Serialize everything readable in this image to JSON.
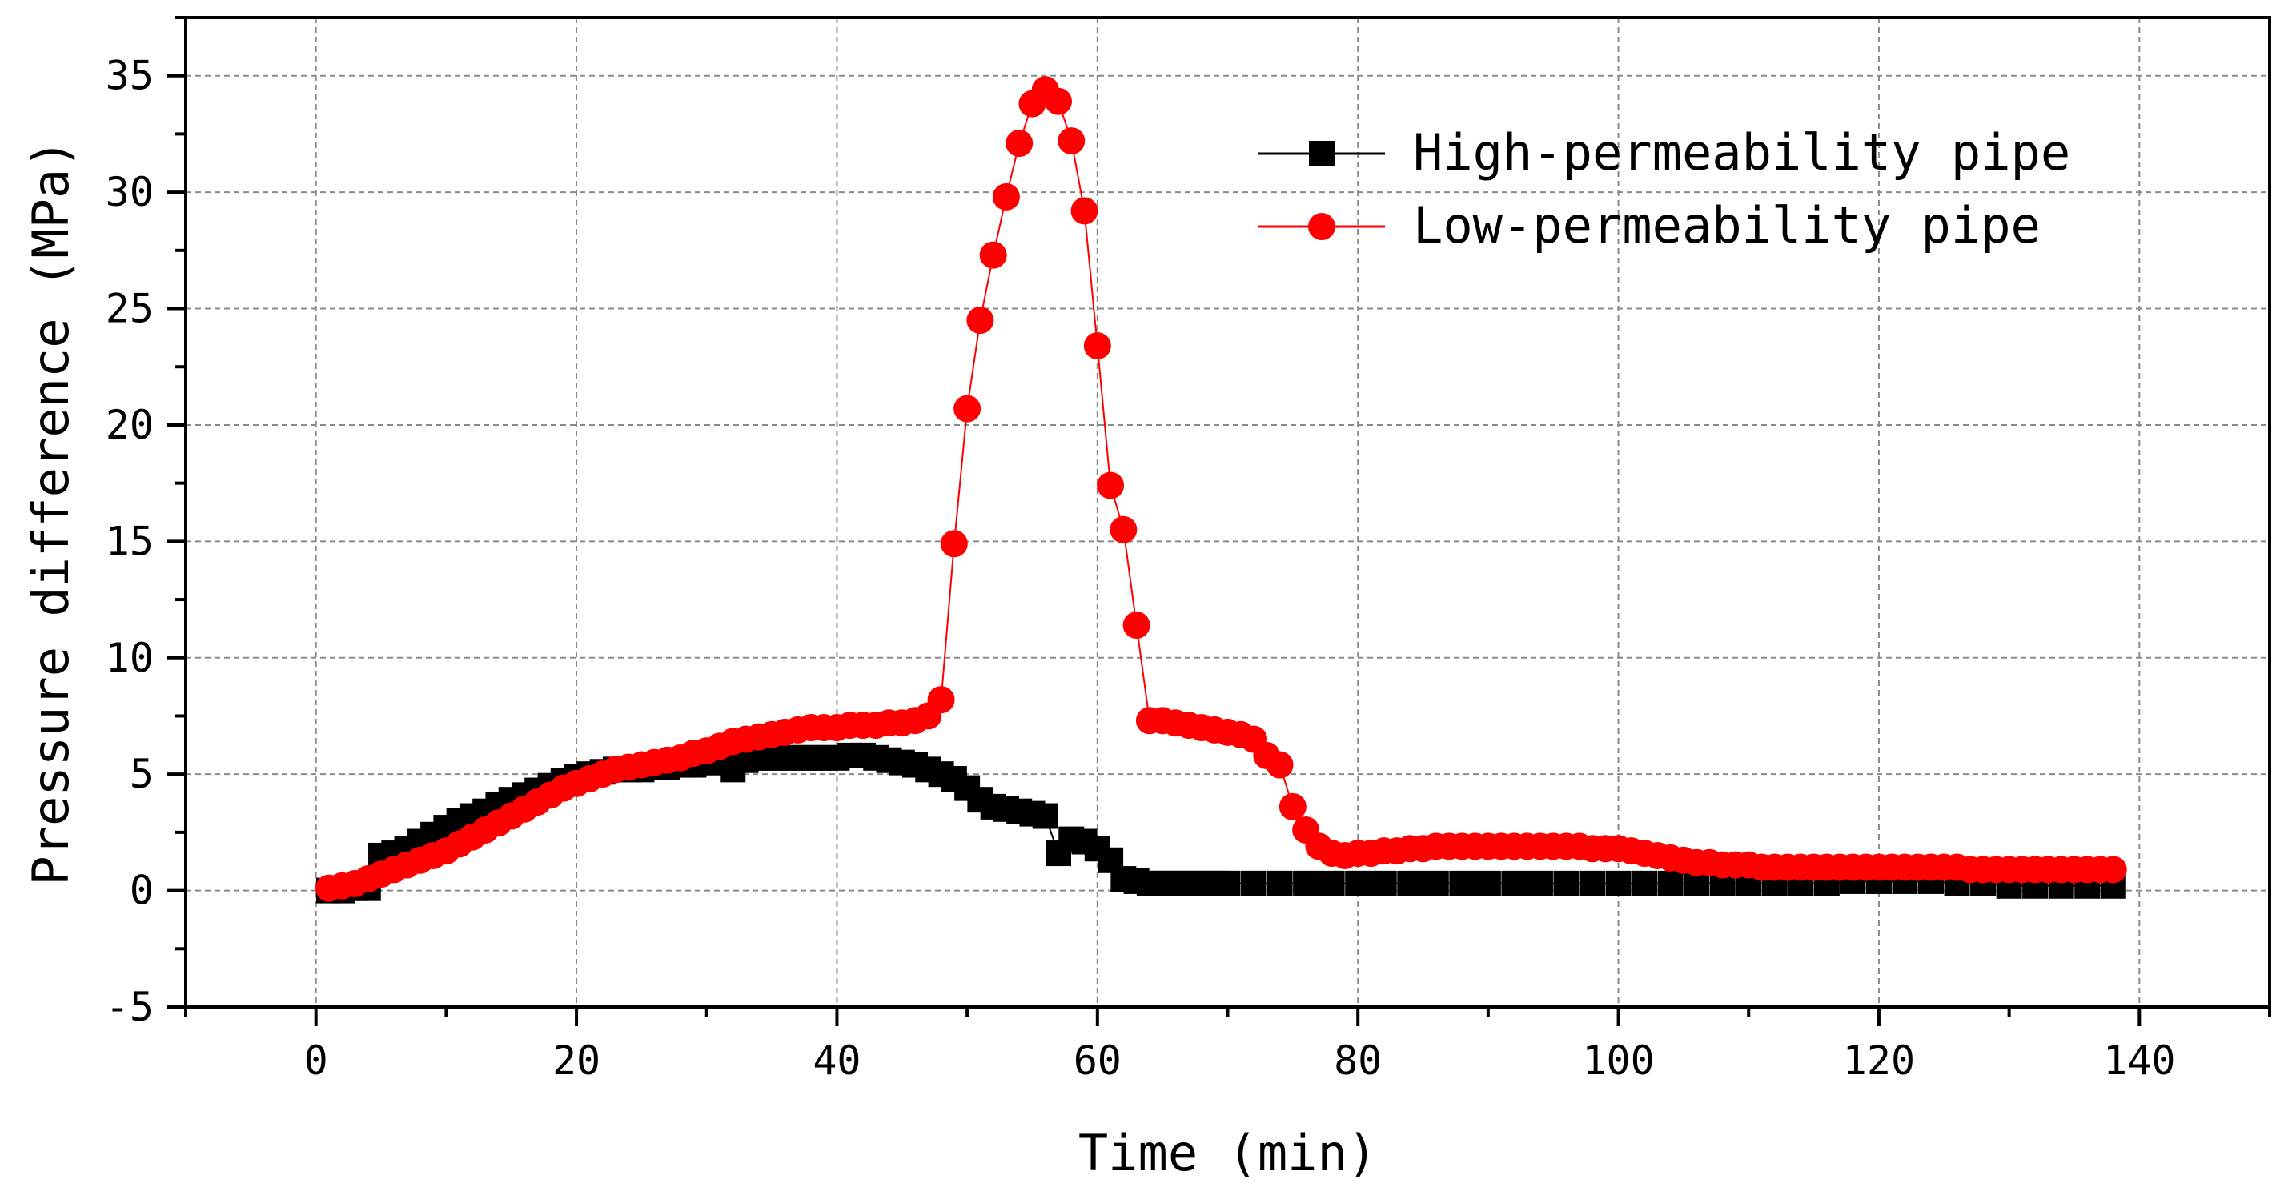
{
  "chart_data": {
    "type": "line",
    "title": "",
    "xlabel": "Time (min)",
    "ylabel": "Pressure difference (MPa)",
    "xlim": [
      -10,
      150
    ],
    "ylim": [
      -5,
      37.5
    ],
    "xticks": [
      0,
      20,
      40,
      60,
      80,
      100,
      120,
      140
    ],
    "yticks": [
      -5,
      0,
      5,
      10,
      15,
      20,
      25,
      30,
      35
    ],
    "xtick_labels": [
      "0",
      "20",
      "40",
      "60",
      "80",
      "100",
      "120",
      "140"
    ],
    "ytick_labels": [
      "-5",
      "0",
      "5",
      "10",
      "15",
      "20",
      "25",
      "30",
      "35"
    ],
    "grid": true,
    "legend_position": "top-right",
    "series": [
      {
        "name": "High-permeability pipe",
        "color": "#000000",
        "marker": "square",
        "x": [
          1,
          2,
          3,
          4,
          5,
          6,
          7,
          8,
          9,
          10,
          11,
          12,
          13,
          14,
          15,
          16,
          17,
          18,
          19,
          20,
          21,
          22,
          23,
          24,
          25,
          26,
          27,
          28,
          29,
          30,
          31,
          32,
          33,
          34,
          35,
          36,
          37,
          38,
          39,
          40,
          41,
          42,
          43,
          44,
          45,
          46,
          47,
          48,
          49,
          50,
          51,
          52,
          53,
          54,
          55,
          56,
          57,
          58,
          59,
          60,
          61,
          62,
          63,
          64,
          65,
          66,
          67,
          68,
          69,
          70,
          72,
          74,
          76,
          78,
          80,
          82,
          84,
          86,
          88,
          90,
          92,
          94,
          96,
          98,
          100,
          102,
          104,
          106,
          108,
          110,
          112,
          114,
          116,
          118,
          120,
          122,
          124,
          126,
          128,
          130,
          132,
          134,
          136,
          138
        ],
        "y": [
          0.0,
          0.0,
          0.1,
          0.1,
          1.5,
          1.6,
          1.8,
          2.1,
          2.4,
          2.7,
          3.0,
          3.2,
          3.4,
          3.7,
          3.9,
          4.1,
          4.3,
          4.5,
          4.7,
          4.9,
          5.0,
          5.1,
          5.2,
          5.2,
          5.2,
          5.3,
          5.3,
          5.4,
          5.4,
          5.5,
          5.5,
          5.2,
          5.6,
          5.7,
          5.7,
          5.7,
          5.7,
          5.7,
          5.7,
          5.7,
          5.8,
          5.8,
          5.7,
          5.6,
          5.5,
          5.4,
          5.2,
          5.0,
          4.8,
          4.4,
          3.9,
          3.6,
          3.5,
          3.4,
          3.3,
          3.2,
          1.6,
          2.2,
          2.1,
          1.8,
          1.3,
          0.5,
          0.4,
          0.3,
          0.3,
          0.3,
          0.3,
          0.3,
          0.3,
          0.3,
          0.3,
          0.3,
          0.3,
          0.3,
          0.3,
          0.3,
          0.3,
          0.3,
          0.3,
          0.3,
          0.3,
          0.3,
          0.3,
          0.3,
          0.3,
          0.3,
          0.3,
          0.3,
          0.3,
          0.3,
          0.3,
          0.3,
          0.3,
          0.4,
          0.4,
          0.4,
          0.4,
          0.3,
          0.3,
          0.2,
          0.2,
          0.2,
          0.2,
          0.2
        ]
      },
      {
        "name": "Low-permeability pipe",
        "color": "#ff0000",
        "marker": "circle",
        "x": [
          1,
          2,
          3,
          4,
          5,
          6,
          7,
          8,
          9,
          10,
          11,
          12,
          13,
          14,
          15,
          16,
          17,
          18,
          19,
          20,
          21,
          22,
          23,
          24,
          25,
          26,
          27,
          28,
          29,
          30,
          31,
          32,
          33,
          34,
          35,
          36,
          37,
          38,
          39,
          40,
          41,
          42,
          43,
          44,
          45,
          46,
          47,
          48,
          49,
          50,
          51,
          52,
          53,
          54,
          55,
          56,
          57,
          58,
          59,
          60,
          61,
          62,
          63,
          64,
          65,
          66,
          67,
          68,
          69,
          70,
          71,
          72,
          73,
          74,
          75,
          76,
          77,
          78,
          79,
          80,
          81,
          82,
          83,
          84,
          85,
          86,
          87,
          88,
          89,
          90,
          91,
          92,
          93,
          94,
          95,
          96,
          97,
          98,
          99,
          100,
          101,
          102,
          103,
          104,
          105,
          106,
          107,
          108,
          109,
          110,
          111,
          112,
          113,
          114,
          115,
          116,
          117,
          118,
          119,
          120,
          121,
          122,
          123,
          124,
          125,
          126,
          127,
          128,
          129,
          130,
          131,
          132,
          133,
          134,
          135,
          136,
          137,
          138
        ],
        "y": [
          0.1,
          0.2,
          0.3,
          0.5,
          0.7,
          0.9,
          1.1,
          1.3,
          1.5,
          1.7,
          2.0,
          2.3,
          2.6,
          2.9,
          3.2,
          3.5,
          3.8,
          4.1,
          4.4,
          4.6,
          4.8,
          5.0,
          5.2,
          5.3,
          5.4,
          5.5,
          5.6,
          5.7,
          5.9,
          6.0,
          6.2,
          6.4,
          6.5,
          6.6,
          6.7,
          6.8,
          6.9,
          7.0,
          7.0,
          7.0,
          7.1,
          7.1,
          7.1,
          7.2,
          7.2,
          7.3,
          7.5,
          8.2,
          14.9,
          20.7,
          24.5,
          27.3,
          29.8,
          32.1,
          33.8,
          34.4,
          33.9,
          32.2,
          29.2,
          23.4,
          17.4,
          15.5,
          11.4,
          7.3,
          7.3,
          7.2,
          7.1,
          7.0,
          6.9,
          6.8,
          6.7,
          6.5,
          5.8,
          5.4,
          3.6,
          2.6,
          1.9,
          1.6,
          1.5,
          1.6,
          1.6,
          1.7,
          1.7,
          1.8,
          1.8,
          1.9,
          1.9,
          1.9,
          1.9,
          1.9,
          1.9,
          1.9,
          1.9,
          1.9,
          1.9,
          1.9,
          1.9,
          1.8,
          1.8,
          1.8,
          1.7,
          1.6,
          1.5,
          1.4,
          1.3,
          1.2,
          1.2,
          1.1,
          1.1,
          1.1,
          1.0,
          1.0,
          1.0,
          1.0,
          1.0,
          1.0,
          1.0,
          1.0,
          1.0,
          1.0,
          1.0,
          1.0,
          1.0,
          1.0,
          1.0,
          1.0,
          0.9,
          0.9,
          0.9,
          0.9,
          0.9,
          0.9,
          0.9,
          0.9,
          0.9,
          0.9,
          0.9,
          0.9
        ]
      }
    ]
  }
}
